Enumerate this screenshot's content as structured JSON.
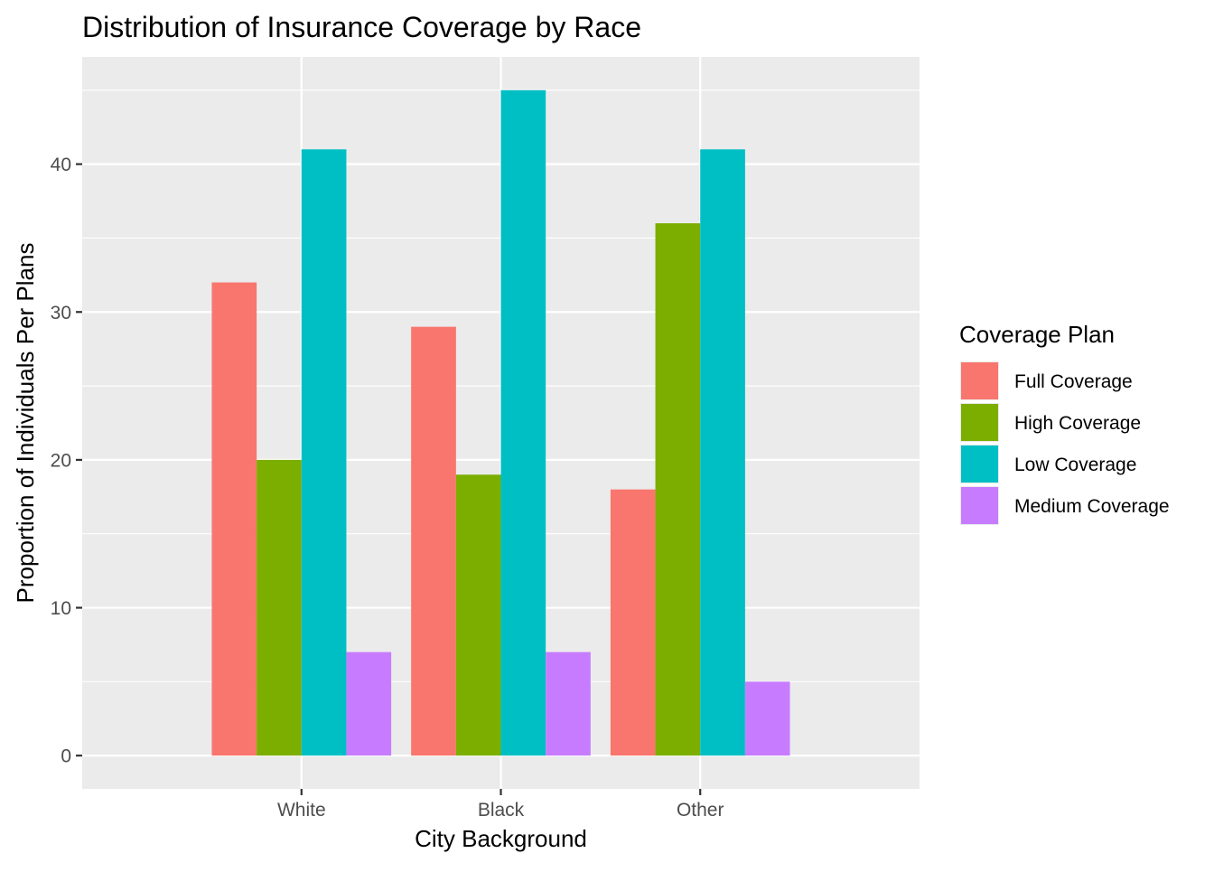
{
  "chart_data": {
    "type": "bar",
    "title": "Distribution of Insurance Coverage by Race",
    "xlabel": "City Background",
    "ylabel": "Proportion of Individuals Per Plans",
    "categories": [
      "White",
      "Black",
      "Other"
    ],
    "series": [
      {
        "name": "Full Coverage",
        "color": "#F8766D",
        "values": [
          32,
          29,
          18
        ]
      },
      {
        "name": "High Coverage",
        "color": "#7CAE00",
        "values": [
          20,
          19,
          36
        ]
      },
      {
        "name": "Low Coverage",
        "color": "#00BFC4",
        "values": [
          41,
          45,
          41
        ]
      },
      {
        "name": "Medium Coverage",
        "color": "#C77CFF",
        "values": [
          7,
          7,
          5
        ]
      }
    ],
    "ylim": [
      -2.25,
      47.25
    ],
    "yticks": [
      0,
      10,
      20,
      30,
      40
    ],
    "grid": true,
    "legend_title": "Coverage Plan",
    "legend_position": "right",
    "panel_background": "#EBEBEB",
    "grid_color": "#FFFFFF",
    "tick_color": "#333333"
  }
}
